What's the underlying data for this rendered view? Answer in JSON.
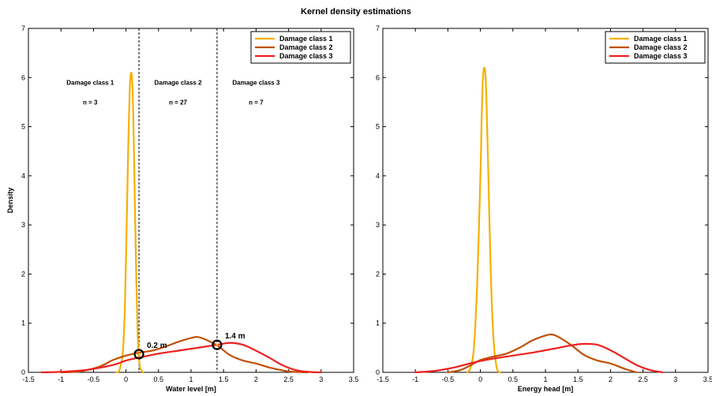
{
  "figure_title": "Kernel density estimations",
  "colors": {
    "class1": "#f5b000",
    "class2": "#c05000",
    "class3": "#f02020"
  },
  "chart_data": [
    {
      "type": "line",
      "xlabel": "Water level [m]",
      "ylabel": "Density",
      "xlim": [
        -1.5,
        3.5
      ],
      "ylim": [
        0,
        7
      ],
      "xticks": [
        "-1.5",
        "-1",
        "-0.5",
        "0",
        "0.5",
        "1",
        "1.5",
        "2",
        "2.5",
        "3",
        "3.5"
      ],
      "yticks": [
        "0",
        "1",
        "2",
        "3",
        "4",
        "5",
        "6",
        "7"
      ],
      "legend_position": "top-right",
      "series": [
        {
          "name": "Damage class 1",
          "color": "#f5b000",
          "x": [
            -0.15,
            -0.1,
            -0.05,
            -0.02,
            0.0,
            0.02,
            0.04,
            0.06,
            0.08,
            0.1,
            0.12,
            0.14,
            0.16,
            0.18,
            0.2,
            0.22,
            0.26
          ],
          "y": [
            0.0,
            0.05,
            0.4,
            1.2,
            2.3,
            3.6,
            4.9,
            5.8,
            6.1,
            5.8,
            4.7,
            3.2,
            1.8,
            0.8,
            0.3,
            0.08,
            0.0
          ]
        },
        {
          "name": "Damage class 2",
          "color": "#c05000",
          "x": [
            -1.0,
            -0.7,
            -0.4,
            -0.2,
            0.0,
            0.2,
            0.4,
            0.6,
            0.8,
            1.0,
            1.1,
            1.2,
            1.4,
            1.6,
            1.8,
            2.0,
            2.2,
            2.5,
            2.8
          ],
          "y": [
            0.0,
            0.02,
            0.12,
            0.25,
            0.34,
            0.4,
            0.44,
            0.52,
            0.62,
            0.7,
            0.72,
            0.68,
            0.55,
            0.35,
            0.24,
            0.18,
            0.1,
            0.02,
            0.0
          ]
        },
        {
          "name": "Damage class 3",
          "color": "#f02020",
          "x": [
            -1.3,
            -1.0,
            -0.6,
            -0.2,
            0.0,
            0.2,
            0.5,
            0.8,
            1.0,
            1.2,
            1.4,
            1.6,
            1.8,
            2.0,
            2.2,
            2.4,
            2.6,
            2.8,
            3.0
          ],
          "y": [
            0.0,
            0.01,
            0.05,
            0.15,
            0.24,
            0.3,
            0.38,
            0.44,
            0.48,
            0.52,
            0.56,
            0.6,
            0.56,
            0.44,
            0.3,
            0.15,
            0.05,
            0.01,
            0.0
          ]
        }
      ],
      "vlines": [
        0.2,
        1.4
      ],
      "regions": [
        {
          "label": "Damage class 1",
          "n": "n = 3",
          "x": -0.55
        },
        {
          "label": "Damage class 2",
          "n": "n = 27",
          "x": 0.8
        },
        {
          "label": "Damage class 3",
          "n": "n = 7",
          "x": 2.0
        }
      ],
      "region_label_y": 5.85,
      "region_n_y": 5.45,
      "markers": [
        {
          "x": 0.2,
          "y": 0.37,
          "label": "0.2 m"
        },
        {
          "x": 1.4,
          "y": 0.56,
          "label": "1.4 m"
        }
      ]
    },
    {
      "type": "line",
      "xlabel": "Energy head [m]",
      "ylabel": "",
      "xlim": [
        -1.5,
        3.5
      ],
      "ylim": [
        0,
        7
      ],
      "xticks": [
        "-1.5",
        "-1",
        "-0.5",
        "0",
        "0.5",
        "1",
        "1.5",
        "2",
        "2.5",
        "3",
        "3.5"
      ],
      "yticks": [
        "0",
        "1",
        "2",
        "3",
        "4",
        "5",
        "6",
        "7"
      ],
      "legend_position": "top-right",
      "series": [
        {
          "name": "Damage class 1",
          "color": "#f5b000",
          "x": [
            -0.2,
            -0.15,
            -0.1,
            -0.05,
            0.0,
            0.02,
            0.04,
            0.06,
            0.08,
            0.1,
            0.13,
            0.16,
            0.2,
            0.25,
            0.3
          ],
          "y": [
            0.0,
            0.1,
            0.5,
            1.8,
            4.0,
            5.2,
            6.0,
            6.2,
            6.0,
            5.2,
            3.6,
            2.0,
            0.7,
            0.1,
            0.0
          ]
        },
        {
          "name": "Damage class 2",
          "color": "#c05000",
          "x": [
            -0.5,
            -0.3,
            -0.1,
            0.0,
            0.2,
            0.4,
            0.6,
            0.8,
            1.0,
            1.1,
            1.2,
            1.4,
            1.6,
            1.8,
            2.0,
            2.2,
            2.4
          ],
          "y": [
            0.0,
            0.05,
            0.18,
            0.25,
            0.32,
            0.38,
            0.5,
            0.65,
            0.75,
            0.77,
            0.72,
            0.55,
            0.35,
            0.24,
            0.18,
            0.08,
            0.0
          ]
        },
        {
          "name": "Damage class 3",
          "color": "#f02020",
          "x": [
            -1.0,
            -0.7,
            -0.4,
            -0.1,
            0.2,
            0.5,
            0.8,
            1.0,
            1.2,
            1.4,
            1.6,
            1.8,
            2.0,
            2.2,
            2.4,
            2.6,
            2.8
          ],
          "y": [
            0.0,
            0.03,
            0.1,
            0.2,
            0.28,
            0.34,
            0.4,
            0.45,
            0.5,
            0.55,
            0.58,
            0.56,
            0.45,
            0.3,
            0.15,
            0.05,
            0.0
          ]
        }
      ],
      "vlines": [],
      "regions": [],
      "markers": []
    }
  ]
}
